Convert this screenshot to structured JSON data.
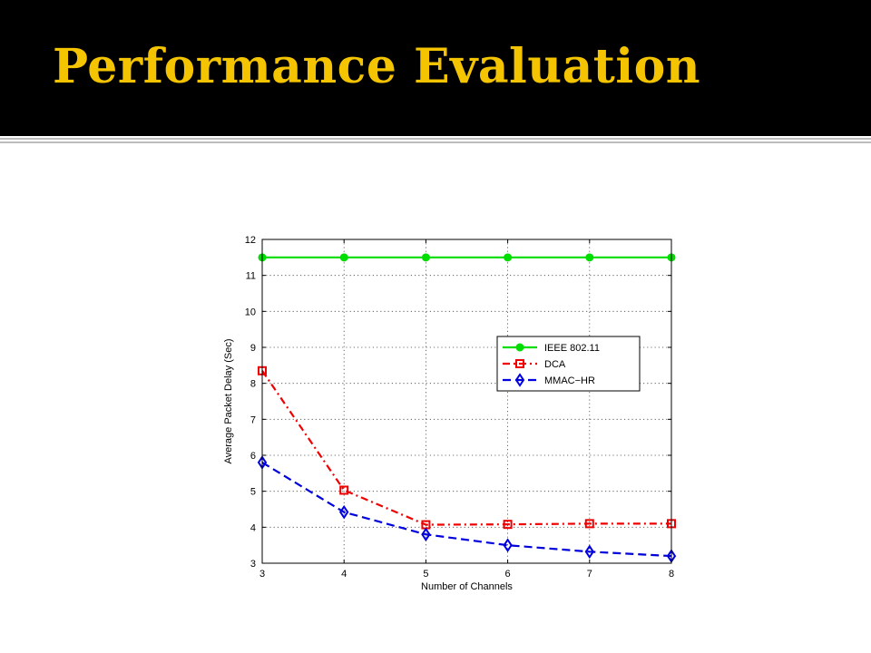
{
  "slide": {
    "title": "Performance Evaluation"
  },
  "colors": {
    "title_bar": "#000000",
    "title_text": "#f5c400",
    "rule": "#bdbdbd"
  },
  "chart_data": {
    "type": "line",
    "title": "",
    "xlabel": "Number of Channels",
    "ylabel": "Average Packet Delay (Sec)",
    "x": [
      3,
      4,
      5,
      6,
      7,
      8
    ],
    "xlim": [
      3,
      8
    ],
    "ylim": [
      3,
      12
    ],
    "xticks": [
      3,
      4,
      5,
      6,
      7,
      8
    ],
    "yticks": [
      3,
      4,
      5,
      6,
      7,
      8,
      9,
      10,
      11,
      12
    ],
    "grid": true,
    "legend_position": "right",
    "series": [
      {
        "name": "IEEE 802.11",
        "values": [
          11.5,
          11.5,
          11.5,
          11.5,
          11.5,
          11.5
        ],
        "color": "#00dd00",
        "line_style": "solid",
        "marker": "circle"
      },
      {
        "name": "DCA",
        "values": [
          8.35,
          5.03,
          4.07,
          4.08,
          4.1,
          4.1
        ],
        "color": "#ee0000",
        "line_style": "dash-dot",
        "marker": "square"
      },
      {
        "name": "MMAC−HR",
        "values": [
          5.8,
          4.42,
          3.8,
          3.5,
          3.32,
          3.2
        ],
        "color": "#0000dd",
        "line_style": "dashed",
        "marker": "diamond"
      }
    ]
  }
}
